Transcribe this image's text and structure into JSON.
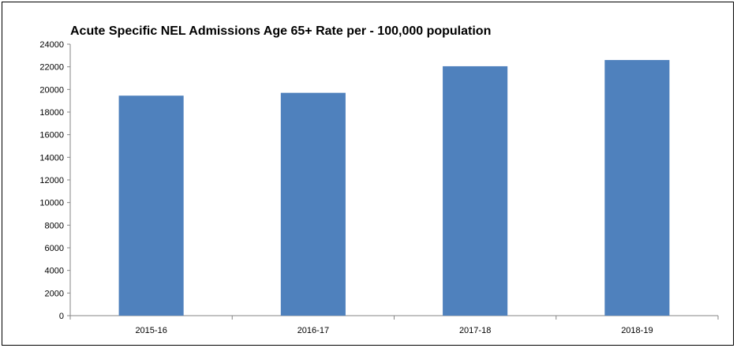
{
  "chart_data": {
    "type": "bar",
    "title": "Acute Specific NEL Admissions Age 65+ Rate per  - 100,000 population",
    "xlabel": "",
    "ylabel": "",
    "categories": [
      "2015-16",
      "2016-17",
      "2017-18",
      "2018-19"
    ],
    "values": [
      19450,
      19700,
      22050,
      22600
    ],
    "ylim": [
      0,
      24000
    ],
    "yticks": [
      0,
      2000,
      4000,
      6000,
      8000,
      10000,
      12000,
      14000,
      16000,
      18000,
      20000,
      22000,
      24000
    ],
    "grid": false,
    "legend": "none",
    "bar_color": "#4F81BD"
  }
}
